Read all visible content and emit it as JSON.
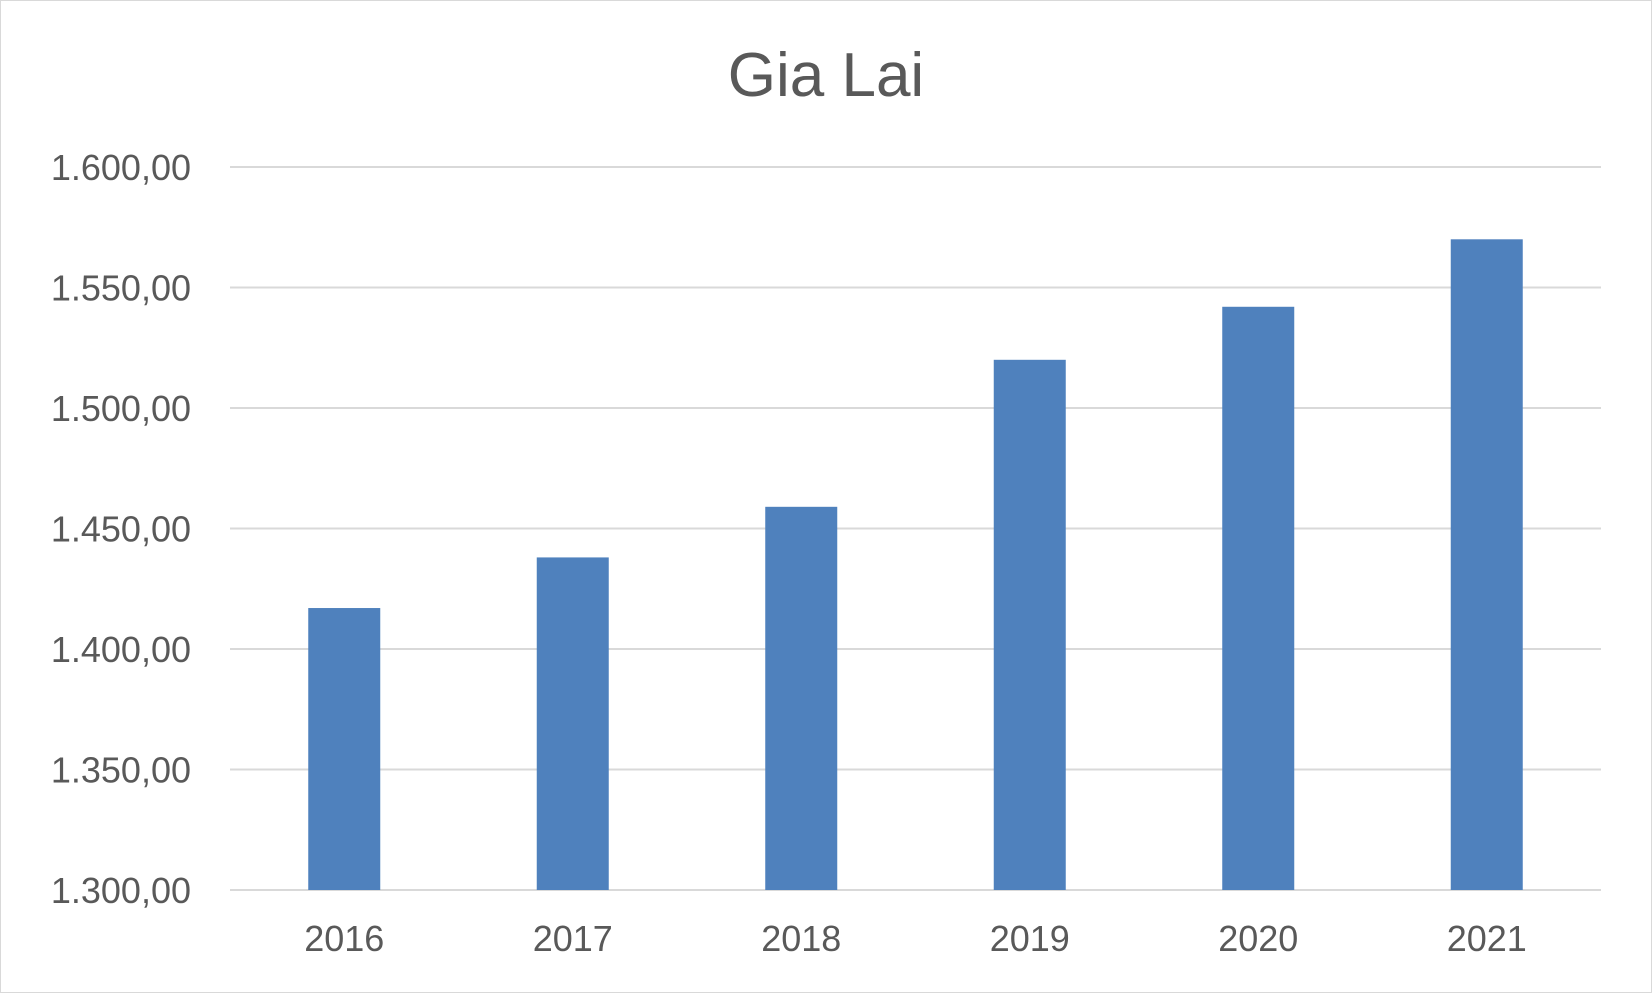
{
  "chart_data": {
    "type": "bar",
    "title": "Gia Lai",
    "xlabel": "",
    "ylabel": "",
    "categories": [
      "2016",
      "2017",
      "2018",
      "2019",
      "2020",
      "2021"
    ],
    "values": [
      1417,
      1438,
      1459,
      1520,
      1542,
      1570
    ],
    "ylim": [
      1300,
      1600
    ],
    "ytick_values": [
      1300,
      1350,
      1400,
      1450,
      1500,
      1550,
      1600
    ],
    "ytick_labels": [
      "1.300,00",
      "1.350,00",
      "1.400,00",
      "1.450,00",
      "1.500,00",
      "1.550,00",
      "1.600,00"
    ],
    "grid": true,
    "legend": "none",
    "bar_color": "#4f81bd"
  }
}
